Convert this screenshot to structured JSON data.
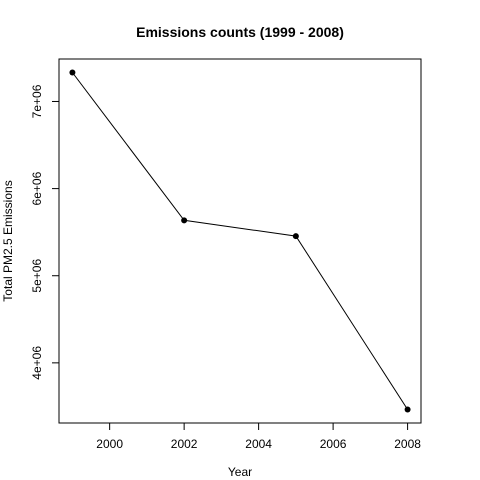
{
  "chart_data": {
    "type": "line",
    "title": "Emissions counts (1999 - 2008)",
    "xlabel": "Year",
    "ylabel": "Total PM2.5 Emissions",
    "x": [
      1999,
      2002,
      2005,
      2008
    ],
    "series": [
      {
        "values": [
          7332967,
          5635780,
          5454703,
          3464206
        ]
      }
    ],
    "xlim": [
      1998.64,
      2008.36
    ],
    "ylim": [
      3309696,
      7487477
    ],
    "xticks": [
      2000,
      2002,
      2004,
      2006,
      2008
    ],
    "xtick_labels": [
      "2000",
      "2002",
      "2004",
      "2006",
      "2008"
    ],
    "yticks": [
      4000000,
      5000000,
      6000000,
      7000000
    ],
    "ytick_labels": [
      "4e+06",
      "5e+06",
      "6e+06",
      "7e+06"
    ],
    "grid": false,
    "markers": "filled-circle",
    "line_color": "#000000"
  }
}
